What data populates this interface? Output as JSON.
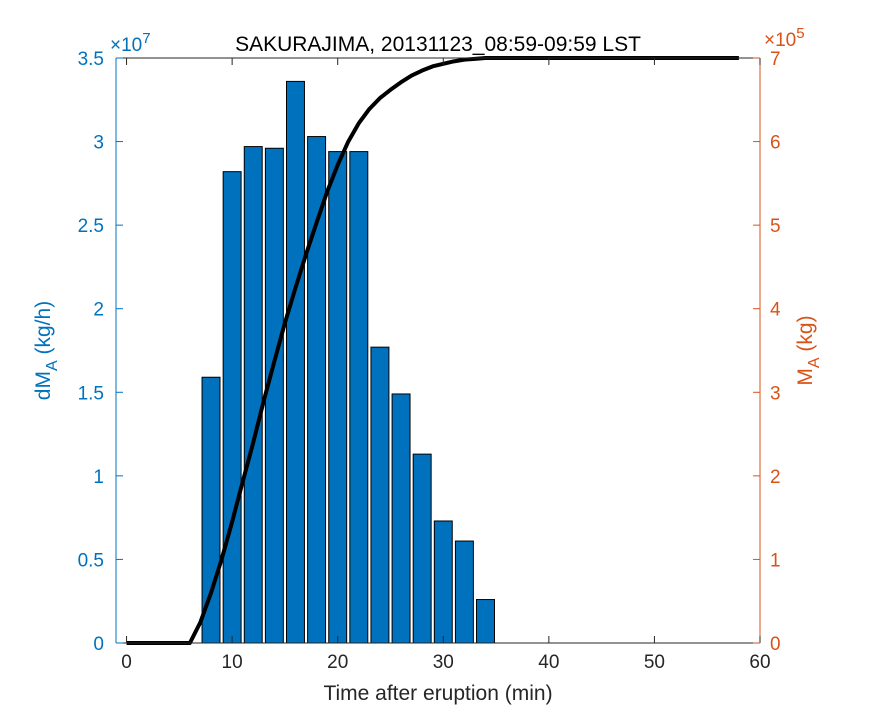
{
  "chart_data": {
    "type": "bar",
    "title": "SAKURAJIMA, 20131123_08:59-09:59 LST",
    "xlabel": "Time after eruption (min)",
    "xlim": [
      -1,
      60
    ],
    "xticks": [
      0,
      10,
      20,
      30,
      40,
      50,
      60
    ],
    "y_left": {
      "label_main": "dM",
      "label_sub": "A",
      "label_unit": " (kg/h)",
      "exponent_base": "×10",
      "exponent_power": "7",
      "scale": 10000000,
      "ylim": [
        0,
        3.5
      ],
      "ticks": [
        0,
        0.5,
        1,
        1.5,
        2,
        2.5,
        3,
        3.5
      ],
      "tick_labels": [
        "0",
        "0.5",
        "1",
        "1.5",
        "2",
        "2.5",
        "3",
        "3.5"
      ],
      "color": "#0072BD"
    },
    "y_right": {
      "label_main": "M",
      "label_sub": "A",
      "label_unit": " (kg)",
      "exponent_base": "×10",
      "exponent_power": "5",
      "scale": 100000,
      "ylim": [
        0,
        7
      ],
      "ticks": [
        0,
        1,
        2,
        3,
        4,
        5,
        6,
        7
      ],
      "tick_labels": [
        "0",
        "1",
        "2",
        "3",
        "4",
        "5",
        "6",
        "7"
      ],
      "color": "#D95319"
    },
    "bar_series": {
      "axis": "left",
      "color": "#0072BD",
      "bar_width_min": 1.7,
      "x": [
        8,
        10,
        12,
        14,
        16,
        18,
        20,
        22,
        24,
        26,
        28,
        30,
        32,
        34
      ],
      "values": [
        1.59,
        2.82,
        2.97,
        2.96,
        3.36,
        3.03,
        2.94,
        2.94,
        1.77,
        1.49,
        1.13,
        0.73,
        0.61,
        0.26
      ]
    },
    "line_series": {
      "axis": "right",
      "color": "#000000",
      "x": [
        0,
        6,
        7,
        8,
        9,
        10,
        11,
        12,
        13,
        14,
        15,
        16,
        17,
        18,
        19,
        20,
        21,
        22,
        23,
        24,
        25,
        26,
        27,
        28,
        29,
        30,
        31,
        32,
        33,
        34,
        35,
        40,
        45,
        50,
        55,
        58
      ],
      "values": [
        0,
        0,
        0.25,
        0.6,
        1.0,
        1.45,
        1.93,
        2.4,
        2.9,
        3.37,
        3.83,
        4.25,
        4.65,
        5.03,
        5.4,
        5.72,
        6.0,
        6.22,
        6.39,
        6.52,
        6.62,
        6.71,
        6.79,
        6.85,
        6.9,
        6.93,
        6.96,
        6.98,
        6.99,
        7.0,
        7.0,
        7.0,
        7.0,
        7.0,
        7.0,
        7.0
      ]
    },
    "grid": false,
    "box": true
  }
}
